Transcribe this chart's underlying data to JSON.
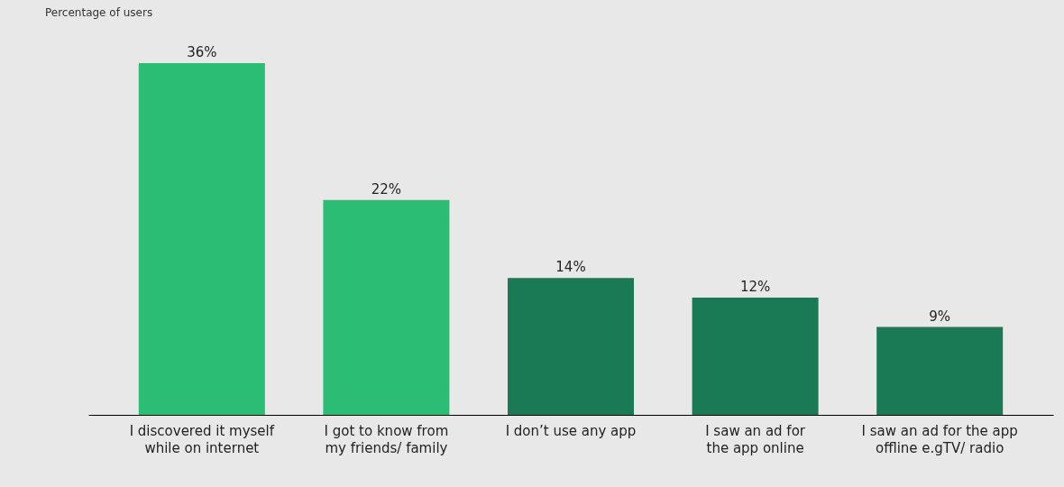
{
  "chart_data": {
    "type": "bar",
    "ylabel": "Percentage of users",
    "categories": [
      "I discovered it myself while on internet",
      "I got to know from my friends/ family",
      "I don’t use any app",
      "I saw an ad for the app online",
      "I saw an ad for the app offline e.gTV/ radio"
    ],
    "values": [
      36,
      22,
      14,
      12,
      9
    ],
    "value_labels": [
      "36%",
      "22%",
      "14%",
      "12%",
      "9%"
    ],
    "colors": [
      "#2bbd73",
      "#2bbd73",
      "#1a7a56",
      "#1a7a56",
      "#1a7a56"
    ],
    "grid": false
  }
}
